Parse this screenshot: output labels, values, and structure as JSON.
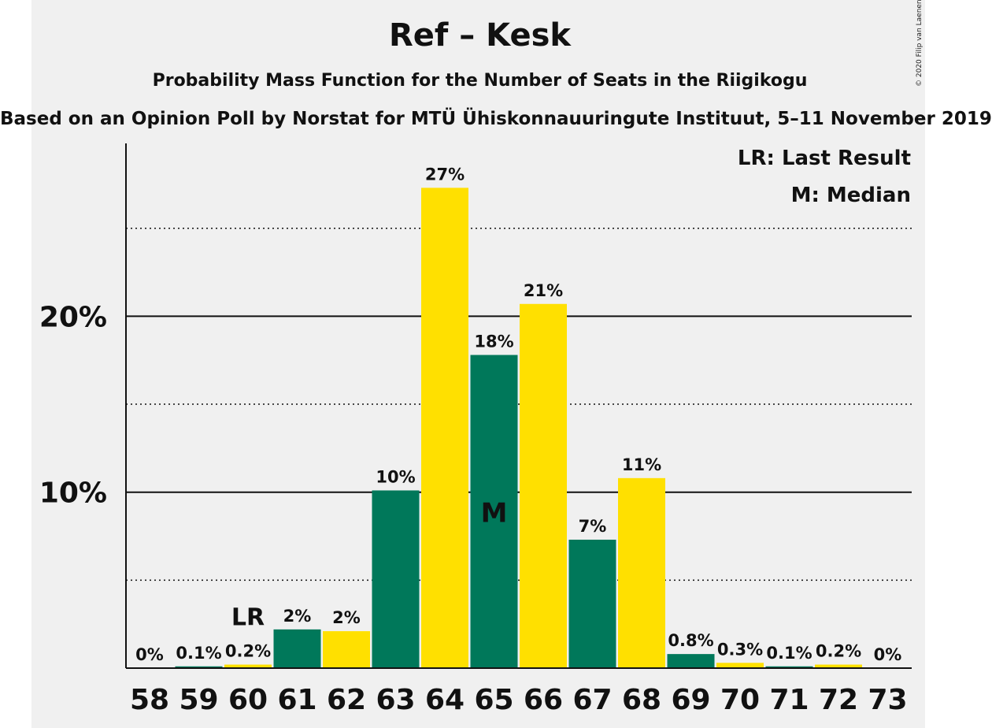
{
  "chart_data": {
    "type": "bar",
    "title": "Ref – Kesk",
    "subtitle": "Probability Mass Function for the Number of Seats in the Riigikogu",
    "source": "Based on an Opinion Poll by Norstat for MTÜ Ühiskonnauuringute Instituut, 5–11 November 2019",
    "copyright": "© 2020 Filip van Laenen",
    "categories": [
      "58",
      "59",
      "60",
      "61",
      "62",
      "63",
      "64",
      "65",
      "66",
      "67",
      "68",
      "69",
      "70",
      "71",
      "72",
      "73"
    ],
    "values": [
      0,
      0.1,
      0.2,
      2.2,
      2.1,
      10.1,
      27.3,
      17.8,
      20.7,
      7.3,
      10.8,
      0.8,
      0.3,
      0.1,
      0.2,
      0
    ],
    "value_labels": [
      "0%",
      "0.1%",
      "0.2%",
      "2%",
      "2%",
      "10%",
      "27%",
      "18%",
      "21%",
      "7%",
      "11%",
      "0.8%",
      "0.3%",
      "0.1%",
      "0.2%",
      "0%"
    ],
    "ylim": [
      0,
      30
    ],
    "yticks": [
      {
        "value": 10,
        "label": "10%"
      },
      {
        "value": 20,
        "label": "20%"
      }
    ],
    "minor_gridlines": [
      5,
      15,
      25
    ],
    "last_result": {
      "category": "60",
      "label": "LR"
    },
    "median": {
      "category": "65",
      "label": "M"
    },
    "legend": [
      "LR: Last Result",
      "M: Median"
    ],
    "legend_position": "top-right",
    "colors": {
      "green": "#00785a",
      "yellow": "#ffe000",
      "background": "#f0f0f0",
      "text": "#111111"
    }
  }
}
